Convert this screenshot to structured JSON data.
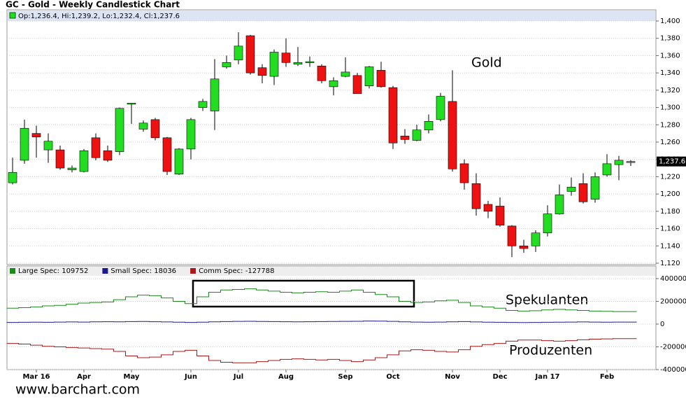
{
  "chart_data": [
    {
      "type": "candlestick",
      "title": "GC - Gold - Weekly Candlestick Chart",
      "info": "Op:1,236.4, Hi:1,239.2, Lo:1,232.4, Cl:1,237.6",
      "annotation": "Gold",
      "last_close_label": "1,237.6",
      "up_color": "#22dd22",
      "down_color": "#ee1111",
      "grid": true,
      "categories": [
        null,
        null,
        "Mar 16",
        null,
        null,
        null,
        "Apr",
        null,
        null,
        null,
        "May",
        null,
        null,
        null,
        null,
        "Jun",
        null,
        null,
        null,
        "Jul",
        null,
        null,
        null,
        "Aug",
        null,
        null,
        null,
        null,
        "Sep",
        null,
        null,
        null,
        "Oct",
        null,
        null,
        null,
        null,
        "Nov",
        null,
        null,
        null,
        "Dec",
        null,
        null,
        null,
        "Jan 17",
        null,
        null,
        null,
        null,
        "Feb",
        null,
        null
      ],
      "open": [
        1213,
        1239,
        1270,
        1251,
        1251,
        1228,
        1226,
        1265,
        1250,
        1249,
        1304,
        1275,
        1286,
        1265,
        1223,
        1252,
        1300,
        1296,
        1347,
        1355,
        1383,
        1346,
        1336,
        1363,
        1350,
        1352,
        1348,
        1324,
        1336,
        1337,
        1325,
        1343,
        1323,
        1267,
        1262,
        1274,
        1286,
        1307,
        1235,
        1212,
        1188,
        1186,
        1163,
        1140,
        1140,
        1155,
        1177,
        1203,
        1212,
        1194,
        1222,
        1234,
        1236.4
      ],
      "high": [
        1242,
        1286,
        1279,
        1270,
        1256,
        1233,
        1252,
        1270,
        1256,
        1300,
        1305,
        1285,
        1288,
        1266,
        1253,
        1288,
        1310,
        1356,
        1360,
        1387,
        1384,
        1350,
        1367,
        1380,
        1370,
        1359,
        1350,
        1335,
        1358,
        1340,
        1348,
        1353,
        1325,
        1275,
        1280,
        1292,
        1317,
        1343,
        1240,
        1224,
        1192,
        1196,
        1164,
        1147,
        1158,
        1187,
        1211,
        1219,
        1224,
        1225,
        1246,
        1244,
        1239.2
      ],
      "low": [
        1211,
        1235,
        1242,
        1236,
        1228,
        1225,
        1225,
        1239,
        1237,
        1245,
        1281,
        1272,
        1262,
        1222,
        1222,
        1240,
        1296,
        1274,
        1345,
        1350,
        1338,
        1328,
        1326,
        1347,
        1348,
        1347,
        1328,
        1314,
        1335,
        1316,
        1322,
        1323,
        1252,
        1258,
        1261,
        1270,
        1284,
        1226,
        1205,
        1175,
        1172,
        1162,
        1127,
        1132,
        1133,
        1151,
        1176,
        1198,
        1189,
        1190,
        1220,
        1216,
        1232.4
      ],
      "close": [
        1225,
        1276,
        1266,
        1261,
        1230,
        1230,
        1250,
        1242,
        1239,
        1299,
        1305,
        1282,
        1265,
        1226,
        1252,
        1286,
        1307,
        1333,
        1352,
        1371,
        1340,
        1337,
        1364,
        1352,
        1352,
        1353,
        1331,
        1331,
        1341,
        1316,
        1347,
        1324,
        1259,
        1263,
        1274,
        1284,
        1313,
        1229,
        1213,
        1183,
        1180,
        1164,
        1140,
        1137,
        1155,
        1177,
        1199,
        1208,
        1191,
        1220,
        1235,
        1239,
        1237.6
      ],
      "ylim": [
        1120,
        1400
      ],
      "yticks": [
        {
          "value": 1120,
          "label": "1,120"
        },
        {
          "value": 1140,
          "label": "1,140"
        },
        {
          "value": 1160,
          "label": "1,160"
        },
        {
          "value": 1180,
          "label": "1,180"
        },
        {
          "value": 1200,
          "label": "1,200"
        },
        {
          "value": 1220,
          "label": "1,220"
        },
        {
          "value": 1240,
          "label": "1,240"
        },
        {
          "value": 1260,
          "label": "1,260"
        },
        {
          "value": 1280,
          "label": "1,280"
        },
        {
          "value": 1300,
          "label": "1,300"
        },
        {
          "value": 1320,
          "label": "1,320"
        },
        {
          "value": 1340,
          "label": "1,340"
        },
        {
          "value": 1360,
          "label": "1,360"
        },
        {
          "value": 1380,
          "label": "1,380"
        },
        {
          "value": 1400,
          "label": "1,400"
        }
      ]
    },
    {
      "type": "line",
      "step": true,
      "grid": true,
      "annotations": [
        "Spekulanten",
        "Produzenten"
      ],
      "ylim": [
        -400000,
        400000
      ],
      "yticks": [
        -400000,
        -200000,
        0,
        200000,
        400000
      ],
      "series": [
        {
          "name": "Large Spec: 109752",
          "color": "#1a8a1a",
          "values": [
            140000,
            145000,
            150000,
            160000,
            165000,
            175000,
            185000,
            190000,
            195000,
            215000,
            240000,
            255000,
            250000,
            230000,
            200000,
            180000,
            240000,
            280000,
            300000,
            305000,
            310000,
            300000,
            290000,
            280000,
            275000,
            280000,
            285000,
            280000,
            290000,
            300000,
            280000,
            260000,
            240000,
            200000,
            190000,
            195000,
            205000,
            210000,
            190000,
            160000,
            150000,
            140000,
            120000,
            115000,
            118000,
            125000,
            130000,
            125000,
            120000,
            115000,
            112000,
            110000,
            109752
          ]
        },
        {
          "name": "Small Spec: 18036",
          "color": "#1a1a8a",
          "values": [
            15000,
            16000,
            17000,
            16000,
            18000,
            19000,
            18000,
            20000,
            21000,
            20000,
            22000,
            23000,
            21000,
            19000,
            17000,
            15000,
            17000,
            20000,
            22000,
            24000,
            25000,
            23000,
            22000,
            21000,
            20000,
            21000,
            22000,
            23000,
            24000,
            25000,
            27000,
            26000,
            24000,
            20000,
            18000,
            17000,
            18000,
            20000,
            22000,
            19000,
            17000,
            16000,
            15000,
            14000,
            15000,
            16000,
            17000,
            18000,
            19000,
            18000,
            17000,
            18000,
            18036
          ]
        },
        {
          "name": "Comm Spec: -127788",
          "color": "#aa1a1a",
          "values": [
            -170000,
            -175000,
            -185000,
            -195000,
            -200000,
            -205000,
            -210000,
            -215000,
            -220000,
            -240000,
            -280000,
            -295000,
            -290000,
            -270000,
            -240000,
            -230000,
            -280000,
            -320000,
            -335000,
            -340000,
            -340000,
            -330000,
            -320000,
            -310000,
            -305000,
            -310000,
            -315000,
            -310000,
            -320000,
            -330000,
            -315000,
            -295000,
            -270000,
            -235000,
            -225000,
            -230000,
            -240000,
            -245000,
            -225000,
            -195000,
            -180000,
            -170000,
            -150000,
            -140000,
            -140000,
            -145000,
            -150000,
            -145000,
            -138000,
            -132000,
            -130000,
            -128000,
            -127788
          ]
        }
      ]
    }
  ],
  "footer": "www.barchart.com"
}
